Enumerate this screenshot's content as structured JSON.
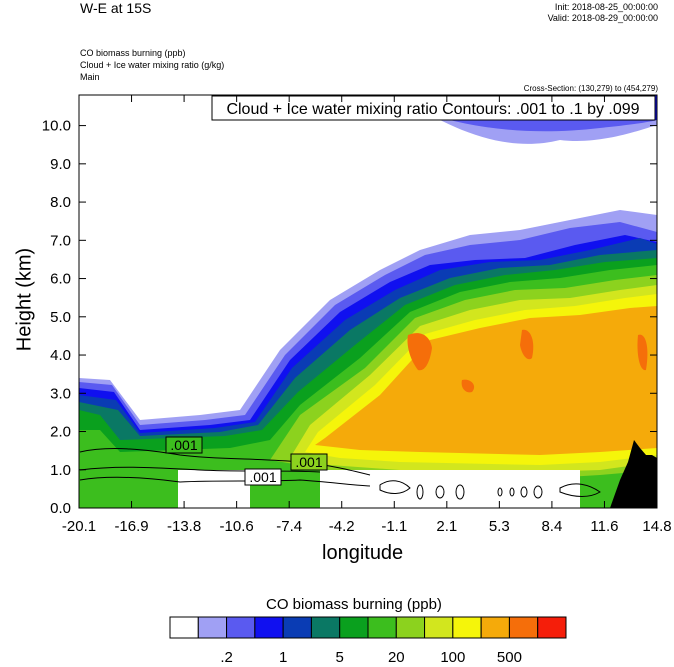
{
  "header": {
    "title": "W-E at 15S",
    "init": "Init: 2018-08-25_00:00:00",
    "valid": "Valid: 2018-08-29_00:00:00",
    "field1": "CO biomass burning   (ppb)",
    "field2": "Cloud + Ice water mixing ratio   (g/kg)",
    "field3": "Main",
    "cross_section": "Cross-Section: (130,279) to (454,279)"
  },
  "chart_data": {
    "type": "heatmap",
    "title": "Cloud + Ice water mixing ratio Contours: .001 to .1 by .099",
    "xlabel": "longitude",
    "ylabel": "Height (km)",
    "x_ticks": [
      "-20.1",
      "-16.9",
      "-13.8",
      "-10.6",
      "-7.4",
      "-4.2",
      "-1.1",
      "2.1",
      "5.3",
      "8.4",
      "11.6",
      "14.8"
    ],
    "y_ticks": [
      "0.0",
      "1.0",
      "2.0",
      "3.0",
      "4.0",
      "5.0",
      "6.0",
      "7.0",
      "8.0",
      "9.0",
      "10.0"
    ],
    "xlim": [
      -20.1,
      14.8
    ],
    "ylim": [
      0.0,
      10.8
    ],
    "contour_labels": [
      ".001",
      ".001",
      ".001"
    ],
    "colorbar": {
      "title": "CO biomass burning  (ppb)",
      "colors": [
        "#ffffff",
        "#a0a0f4",
        "#5a5af0",
        "#1010f0",
        "#0a3cb4",
        "#0a7864",
        "#0aa01e",
        "#3cbe1e",
        "#8cd21e",
        "#d2e61e",
        "#f5f50a",
        "#f5aa0a",
        "#f56e0a",
        "#f51e0a"
      ],
      "tick_labels": [
        ".2",
        "1",
        "5",
        "20",
        "100",
        "500"
      ]
    }
  }
}
